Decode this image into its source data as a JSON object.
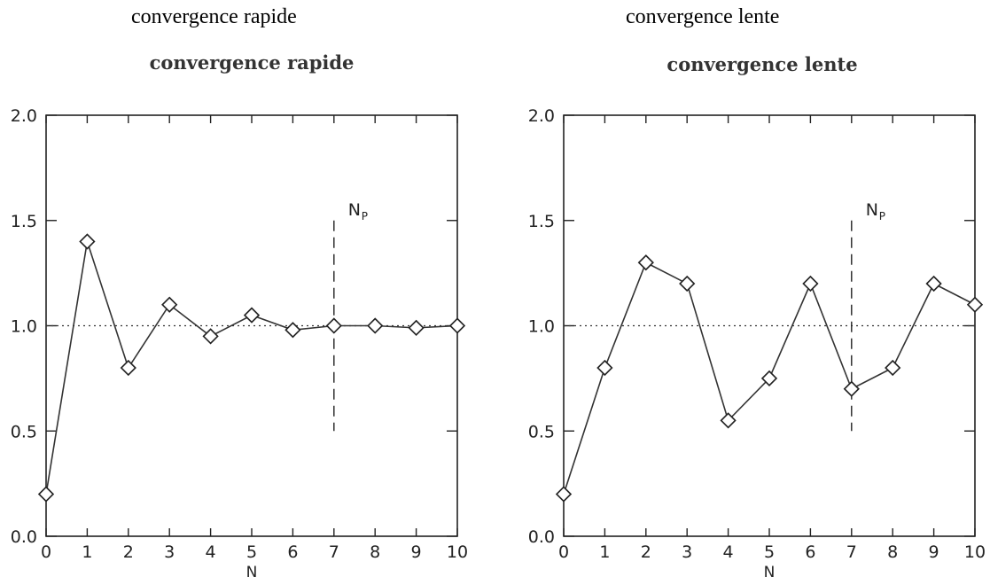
{
  "captions": [
    "convergence rapide",
    "convergence lente"
  ],
  "chart_data": [
    {
      "type": "line",
      "title": "convergence rapide",
      "xlabel": "N",
      "ylabel": "",
      "x": [
        0,
        1,
        2,
        3,
        4,
        5,
        6,
        7,
        8,
        9,
        10
      ],
      "values": [
        0.2,
        1.4,
        0.8,
        1.1,
        0.95,
        1.05,
        0.98,
        1.0,
        1.0,
        0.99,
        1.0
      ],
      "xlim": [
        0,
        10
      ],
      "ylim": [
        0,
        2
      ],
      "xticks": [
        "0",
        "1",
        "2",
        "3",
        "4",
        "5",
        "6",
        "7",
        "8",
        "9",
        "10"
      ],
      "yticks": [
        "0.0",
        "0.5",
        "1.0",
        "1.5",
        "2.0"
      ],
      "reference_line": {
        "y": 1.0,
        "style": "dotted"
      },
      "marker_line": {
        "x": 7,
        "y_range": [
          0.5,
          1.5
        ],
        "style": "dashed",
        "label": "N",
        "label_sub": "P"
      },
      "marker": "diamond",
      "grid": false
    },
    {
      "type": "line",
      "title": "convergence lente",
      "xlabel": "N",
      "ylabel": "",
      "x": [
        0,
        1,
        2,
        3,
        4,
        5,
        6,
        7,
        8,
        9,
        10
      ],
      "values": [
        0.2,
        0.8,
        1.3,
        1.2,
        0.55,
        0.75,
        1.2,
        0.7,
        0.8,
        1.2,
        1.1
      ],
      "xlim": [
        0,
        10
      ],
      "ylim": [
        0,
        2
      ],
      "xticks": [
        "0",
        "1",
        "2",
        "3",
        "4",
        "5",
        "6",
        "7",
        "8",
        "9",
        "10"
      ],
      "yticks": [
        "0.0",
        "0.5",
        "1.0",
        "1.5",
        "2.0"
      ],
      "reference_line": {
        "y": 1.0,
        "style": "dotted"
      },
      "marker_line": {
        "x": 7,
        "y_range": [
          0.5,
          1.5
        ],
        "style": "dashed",
        "label": "N",
        "label_sub": "P"
      },
      "marker": "diamond",
      "grid": false
    }
  ]
}
